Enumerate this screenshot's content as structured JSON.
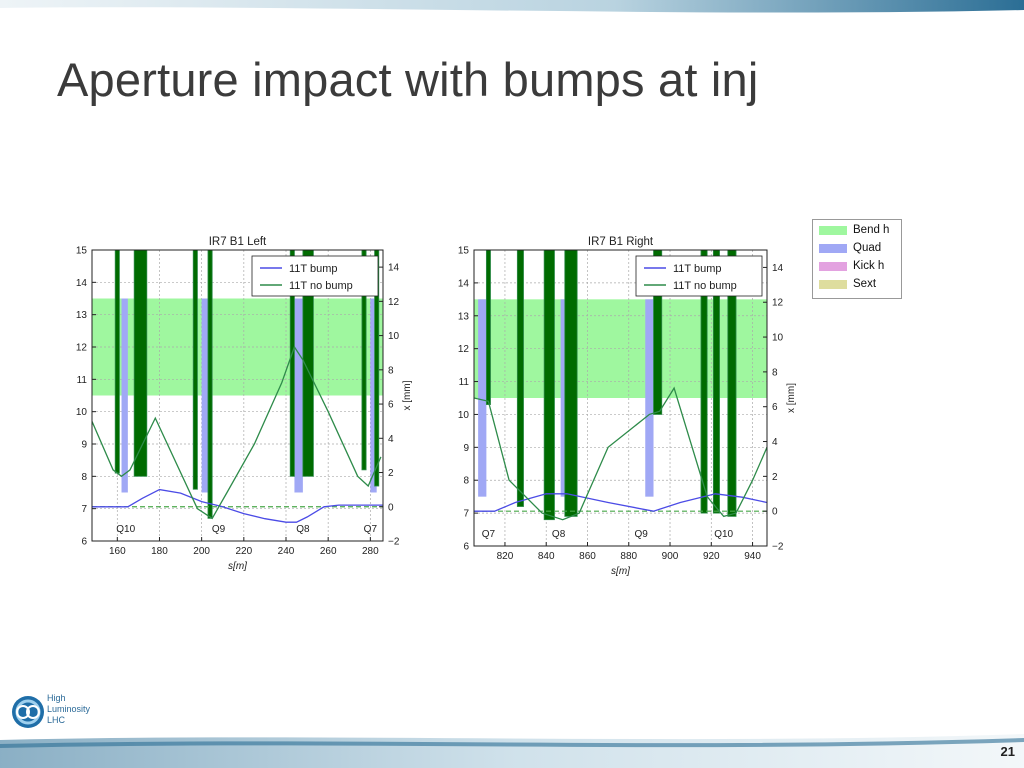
{
  "slide": {
    "title": "Aperture impact with bumps at inj",
    "page_number": "21",
    "logo_lines": [
      "High",
      "Luminosity",
      "LHC"
    ]
  },
  "palette_legend": [
    {
      "label": "Bend h",
      "color": "#9ff79f"
    },
    {
      "label": "Quad",
      "color": "#a0a8f5"
    },
    {
      "label": "Kick h",
      "color": "#e3a2e0"
    },
    {
      "label": "Sext",
      "color": "#dedd9e"
    }
  ],
  "colors": {
    "bump": "#4b4be6",
    "no_bump": "#2e8b4a",
    "dark_green": "#006b00",
    "band": "#9ff79f",
    "quad": "#a0a8f5",
    "dash": "#49a84a"
  },
  "chart_data": [
    {
      "type": "line",
      "title": "IR7 B1 Left",
      "xlabel": "s[m]",
      "ylabel_right": "x [mm]",
      "xlim": [
        148,
        286
      ],
      "ylim_left": [
        6,
        15
      ],
      "ylim_right": [
        -2,
        15
      ],
      "xticks": [
        160,
        180,
        200,
        220,
        240,
        260,
        280
      ],
      "yticks_left": [
        6,
        7,
        8,
        9,
        10,
        11,
        12,
        13,
        14,
        15
      ],
      "yticks_right": [
        -2,
        0,
        2,
        4,
        6,
        8,
        10,
        12,
        14
      ],
      "grid": true,
      "legend_position": "top-right",
      "bend_band": [
        10.5,
        13.5
      ],
      "quad_labels": [
        {
          "label": "Q10",
          "x": 164
        },
        {
          "label": "Q9",
          "x": 208
        },
        {
          "label": "Q8",
          "x": 248
        },
        {
          "label": "Q7",
          "x": 280
        }
      ],
      "quads": [
        [
          162,
          165
        ],
        [
          200,
          204
        ],
        [
          244,
          248
        ],
        [
          280,
          283
        ]
      ],
      "walls": [
        [
          159,
          161,
          8.1
        ],
        [
          168,
          174,
          8.0
        ],
        [
          196,
          198,
          7.6
        ],
        [
          203,
          205,
          6.7
        ],
        [
          242,
          244,
          8.0
        ],
        [
          248,
          253,
          8.0
        ],
        [
          276,
          278,
          8.2
        ],
        [
          282,
          284,
          7.7
        ]
      ],
      "series": [
        {
          "name": "11T bump",
          "axis": "right",
          "x": [
            148,
            165,
            172,
            180,
            190,
            200,
            210,
            220,
            230,
            240,
            245,
            250,
            258,
            265,
            275,
            286
          ],
          "y": [
            0,
            0,
            0.5,
            1.0,
            0.8,
            0.3,
            0,
            -0.4,
            -0.7,
            -0.9,
            -0.9,
            -0.6,
            0,
            0.1,
            0.1,
            0.1
          ]
        },
        {
          "name": "11T no bump",
          "axis": "left",
          "x": [
            148,
            158,
            162,
            166,
            178,
            198,
            205,
            212,
            225,
            238,
            244,
            248,
            260,
            274,
            279,
            285
          ],
          "y": [
            9.7,
            8.2,
            8.0,
            8.2,
            9.8,
            7.0,
            6.7,
            7.5,
            9.0,
            10.9,
            12.0,
            11.6,
            10.0,
            8.0,
            7.7,
            8.6
          ]
        }
      ]
    },
    {
      "type": "line",
      "title": "IR7 B1 Right",
      "xlabel": "s[m]",
      "ylabel_right": "x [mm]",
      "xlim": [
        805,
        947
      ],
      "ylim_left": [
        6,
        15
      ],
      "ylim_right": [
        -2,
        15
      ],
      "xticks": [
        820,
        840,
        860,
        880,
        900,
        920,
        940
      ],
      "yticks_left": [
        6,
        7,
        8,
        9,
        10,
        11,
        12,
        13,
        14,
        15
      ],
      "yticks_right": [
        -2,
        0,
        2,
        4,
        6,
        8,
        10,
        12,
        14
      ],
      "grid": true,
      "legend_position": "top-right",
      "bend_band": [
        10.5,
        13.5
      ],
      "quad_labels": [
        {
          "label": "Q7",
          "x": 812
        },
        {
          "label": "Q8",
          "x": 846
        },
        {
          "label": "Q9",
          "x": 886
        },
        {
          "label": "Q10",
          "x": 926
        }
      ],
      "quads": [
        [
          807,
          811
        ],
        [
          847,
          851
        ],
        [
          888,
          892
        ],
        [
          928,
          931
        ]
      ],
      "walls": [
        [
          811,
          813,
          10.3
        ],
        [
          826,
          829,
          7.2
        ],
        [
          839,
          844,
          6.8
        ],
        [
          849,
          855,
          6.9
        ],
        [
          892,
          896,
          10.0
        ],
        [
          915,
          918,
          7.0
        ],
        [
          921,
          924,
          7.0
        ],
        [
          928,
          932,
          6.9
        ]
      ],
      "series": [
        {
          "name": "11T bump",
          "axis": "right",
          "x": [
            805,
            815,
            825,
            840,
            850,
            870,
            892,
            905,
            922,
            935,
            947
          ],
          "y": [
            0,
            0,
            0.5,
            1.0,
            1.0,
            0.5,
            0,
            0.5,
            1.0,
            0.8,
            0.5
          ]
        },
        {
          "name": "11T no bump",
          "axis": "left",
          "x": [
            805,
            812,
            822,
            838,
            848,
            856,
            870,
            890,
            895,
            902,
            918,
            926,
            932,
            940,
            947
          ],
          "y": [
            10.5,
            10.4,
            8.0,
            7.0,
            6.8,
            7.0,
            9.0,
            10.0,
            10.1,
            10.8,
            7.5,
            6.9,
            7.0,
            8.0,
            9.0
          ]
        }
      ]
    }
  ]
}
